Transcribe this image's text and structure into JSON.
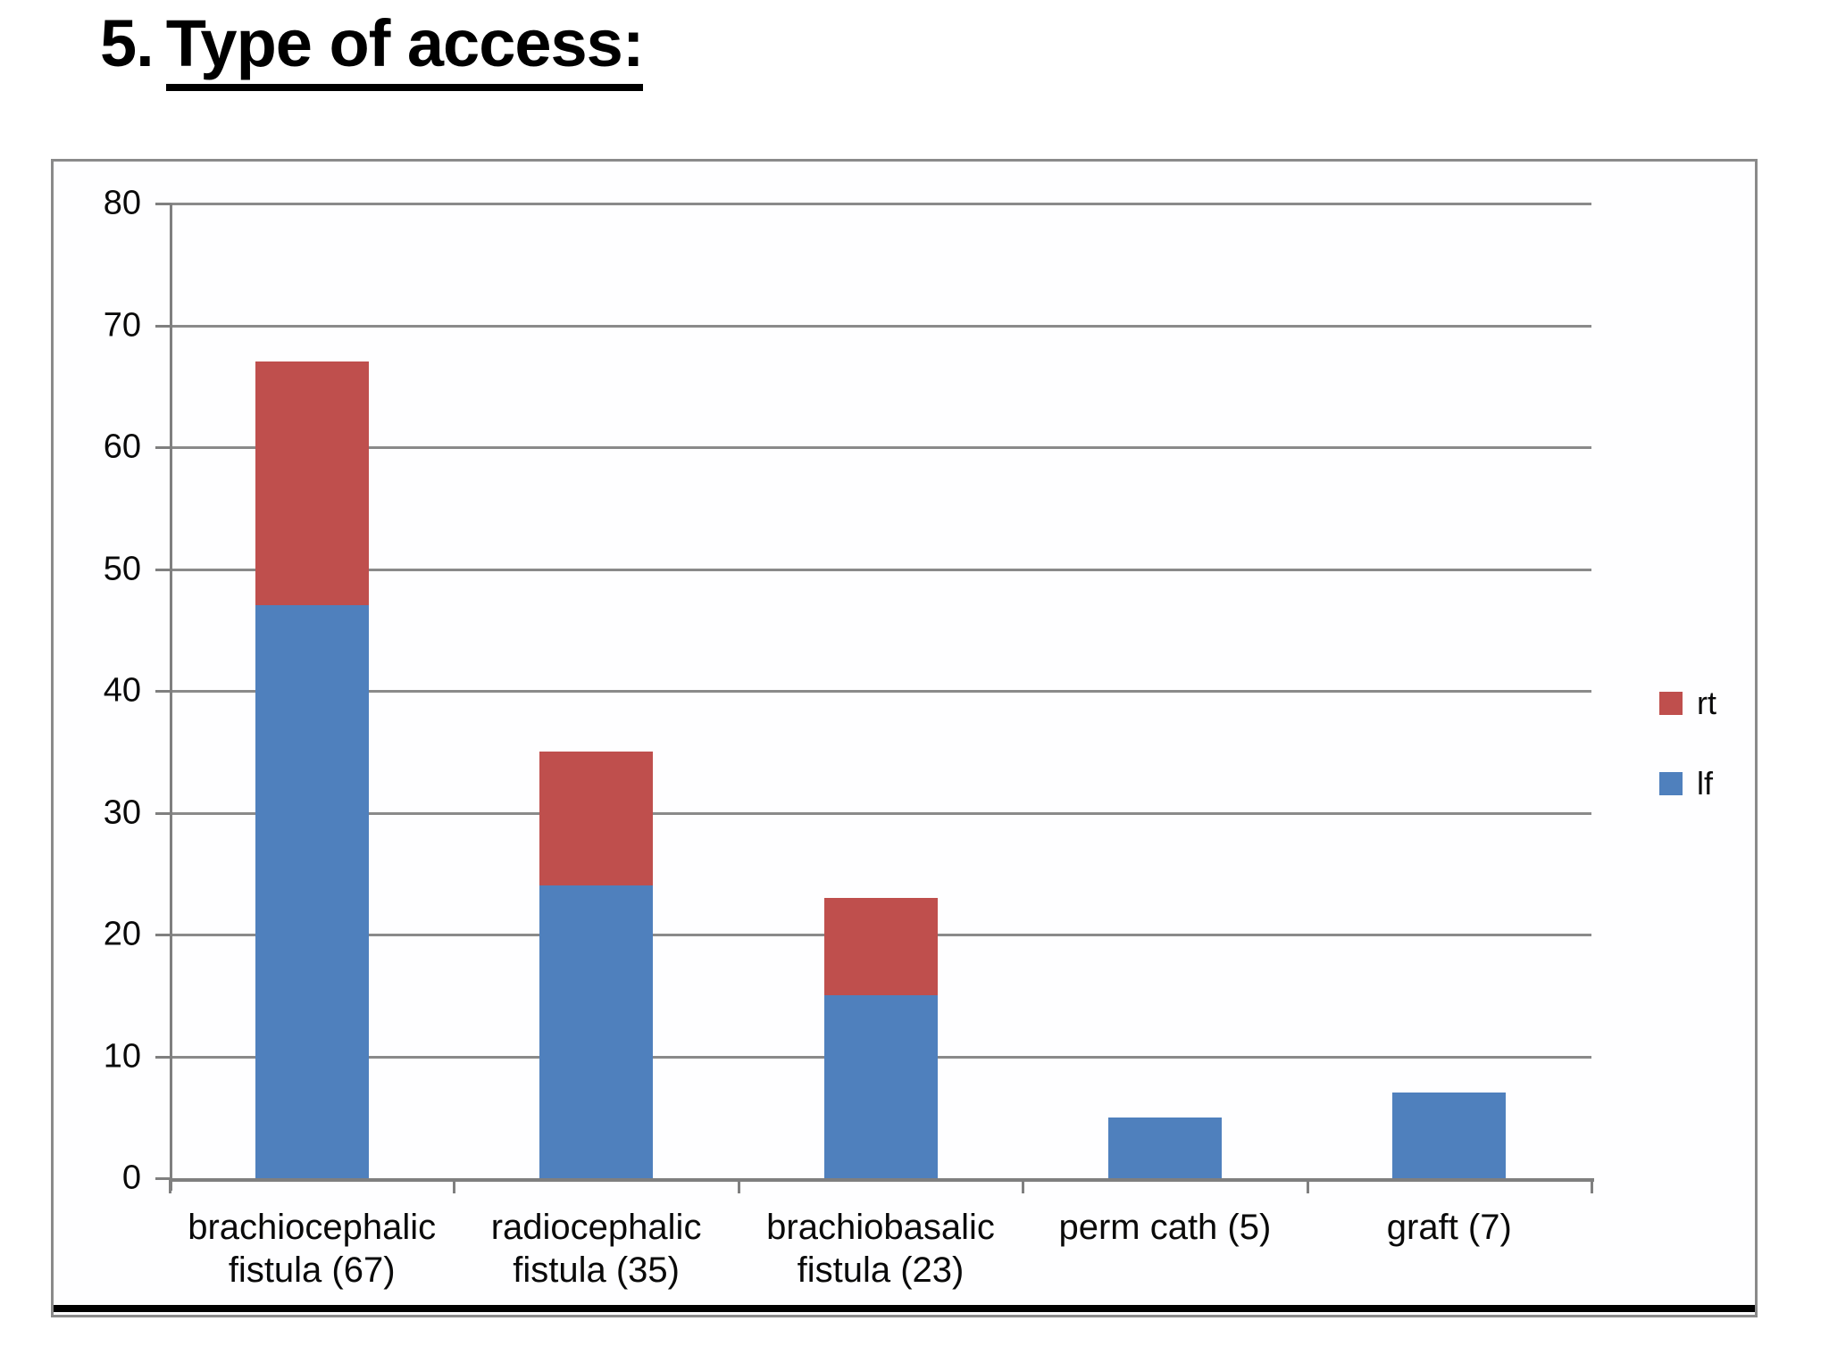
{
  "title": {
    "prefix": "5.",
    "underlined": "Type of access:"
  },
  "chart_data": {
    "type": "bar",
    "stacked": true,
    "categories": [
      "brachiocephalic fistula (67)",
      "radiocephalic fistula (35)",
      "brachiobasalic fistula (23)",
      "perm cath (5)",
      "graft (7)"
    ],
    "series": [
      {
        "name": "lf",
        "color": "#4F80BD",
        "values": [
          47,
          24,
          15,
          5,
          7
        ]
      },
      {
        "name": "rt",
        "color": "#BF4F4D",
        "values": [
          20,
          11,
          8,
          0,
          0
        ]
      }
    ],
    "totals": [
      67,
      35,
      23,
      5,
      7
    ],
    "legend_order": [
      "rt",
      "lf"
    ],
    "legend_position": "right",
    "ylim": [
      0,
      80
    ],
    "yticks": [
      0,
      10,
      20,
      30,
      40,
      50,
      60,
      70,
      80
    ],
    "grid": true,
    "xlabel": "",
    "ylabel": ""
  },
  "colors": {
    "bar_blue": "#4F80BD",
    "bar_red": "#BF4F4D",
    "gridline": "#8a8a8a",
    "axis": "#7f7f7f",
    "frame_border": "#8a8a8a",
    "bottom_rule": "#000000",
    "text": "#0a0a0a"
  }
}
